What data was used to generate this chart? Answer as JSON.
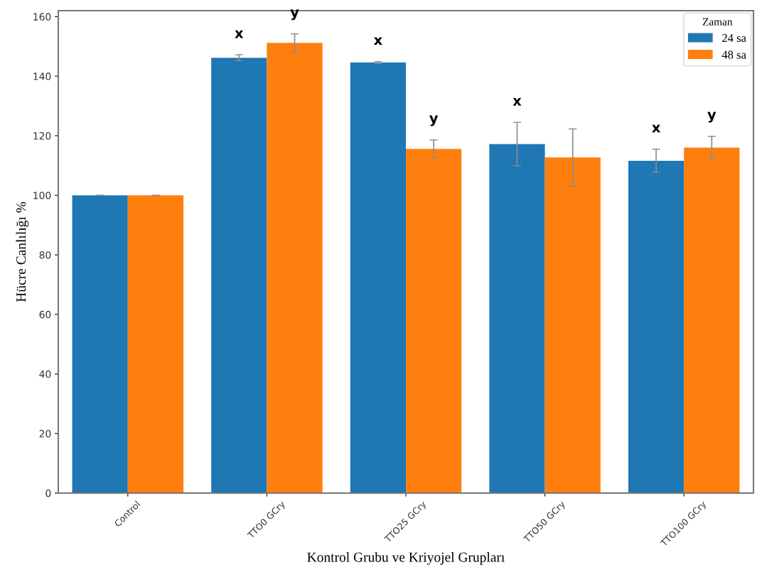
{
  "chart_data": {
    "type": "bar",
    "xlabel": "Kontrol Grubu ve Kriyojel Grupları",
    "ylabel": "Hücre Canlılığı %",
    "legend_title": "Zaman",
    "legend": "top right",
    "grid": false,
    "categories": [
      "Control",
      "TTO0 GCry",
      "TTO25 GCry",
      "TTO50 GCry",
      "TTO100 GCry"
    ],
    "series": [
      {
        "name": "24 sa",
        "color": "#1f77b4",
        "values": [
          100,
          146.2,
          144.6,
          117.2,
          111.6
        ],
        "errors": [
          0,
          1,
          0.3,
          7.3,
          3.9
        ],
        "value_labels": [
          null,
          "x",
          "x",
          "x",
          "x"
        ]
      },
      {
        "name": "48 sa",
        "color": "#ff7f0e",
        "values": [
          100,
          151.2,
          115.6,
          112.7,
          116
        ],
        "errors": [
          0,
          3,
          3,
          9.6,
          3.8
        ],
        "value_labels": [
          null,
          "y",
          "y",
          null,
          "y"
        ]
      }
    ],
    "ylim": [
      0,
      162
    ],
    "yticks": [
      0,
      20,
      40,
      60,
      80,
      100,
      120,
      140,
      160
    ]
  }
}
